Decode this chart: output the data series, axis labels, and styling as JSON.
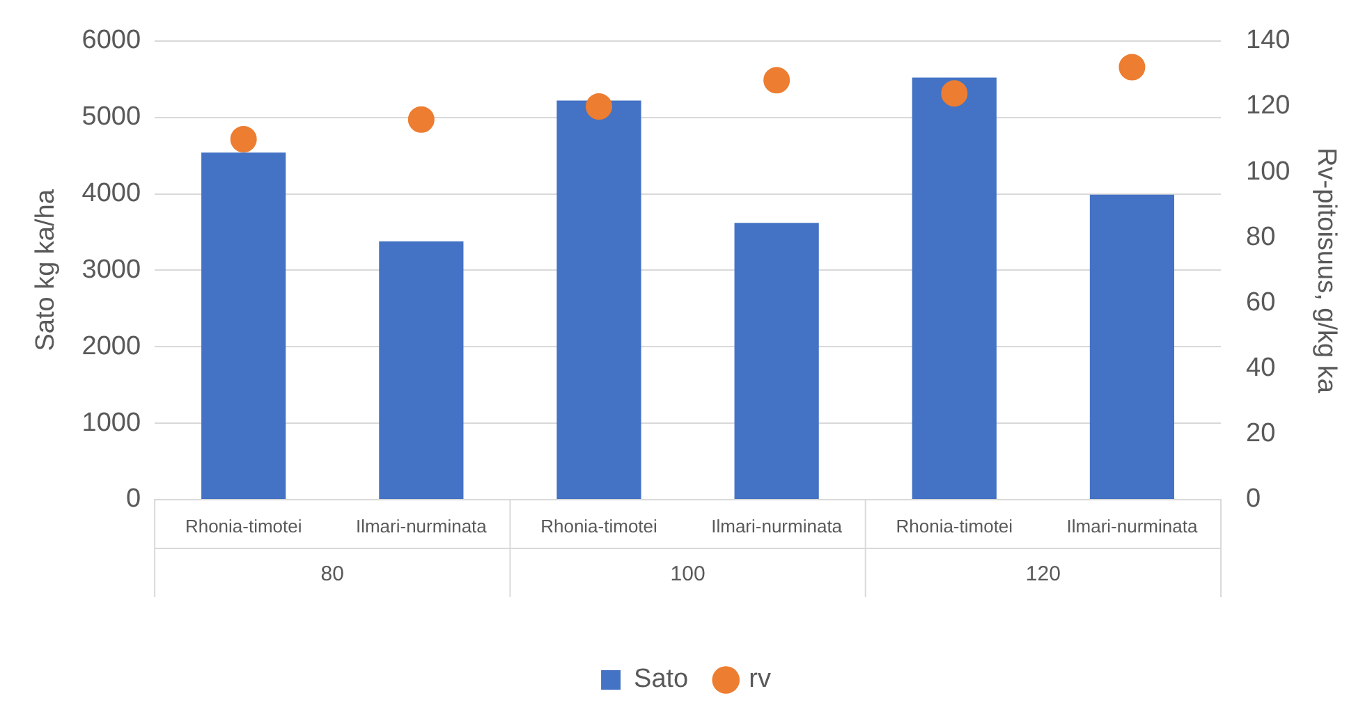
{
  "chart_data": {
    "type": "bar",
    "ylabel": "Sato kg ka/ha",
    "y2label": "Rv-pitoisuus, g/kg ka",
    "categories": [
      "Rhonia-timotei",
      "Ilmari-nurminata",
      "Rhonia-timotei",
      "Ilmari-nurminata",
      "Rhonia-timotei",
      "Ilmari-nurminata"
    ],
    "series": [
      {
        "name": "Sato",
        "color": "#4472c4",
        "values": [
          4540,
          3380,
          5220,
          3620,
          5520,
          3990
        ]
      },
      {
        "name": "rv",
        "type": "scatter",
        "axis": "y2",
        "color": "#ed7d31",
        "values": [
          110,
          116,
          120,
          128,
          124,
          132
        ]
      }
    ],
    "annotations": [
      "80",
      "100",
      "120"
    ],
    "ylim": [
      0,
      6000
    ],
    "yticks": [
      0,
      1000,
      2000,
      3000,
      4000,
      5000,
      6000
    ],
    "y2lim": [
      0,
      140
    ],
    "y2ticks": [
      0,
      20,
      40,
      60,
      80,
      100,
      120,
      140
    ],
    "grid": "y",
    "legend": "bottom",
    "marker": "circle"
  }
}
